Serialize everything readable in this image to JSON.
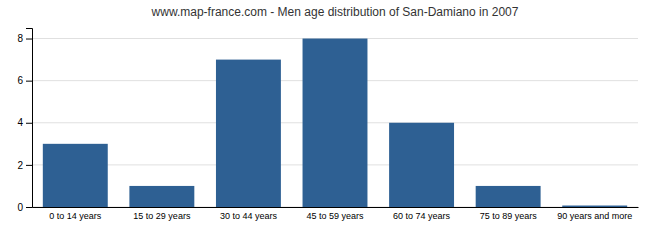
{
  "chart_data": {
    "type": "bar",
    "title": "www.map-france.com - Men age distribution of San-Damiano in 2007",
    "categories": [
      "0 to 14 years",
      "15 to 29 years",
      "30 to 44 years",
      "45 to 59 years",
      "60 to 74 years",
      "75 to 89 years",
      "90 years and more"
    ],
    "values": [
      3,
      1,
      7,
      8,
      4,
      1,
      0.07
    ],
    "color": "#2e6093",
    "ylim": [
      0,
      8.5
    ],
    "yticks": [
      0,
      2,
      4,
      6,
      8
    ],
    "grid": true
  }
}
